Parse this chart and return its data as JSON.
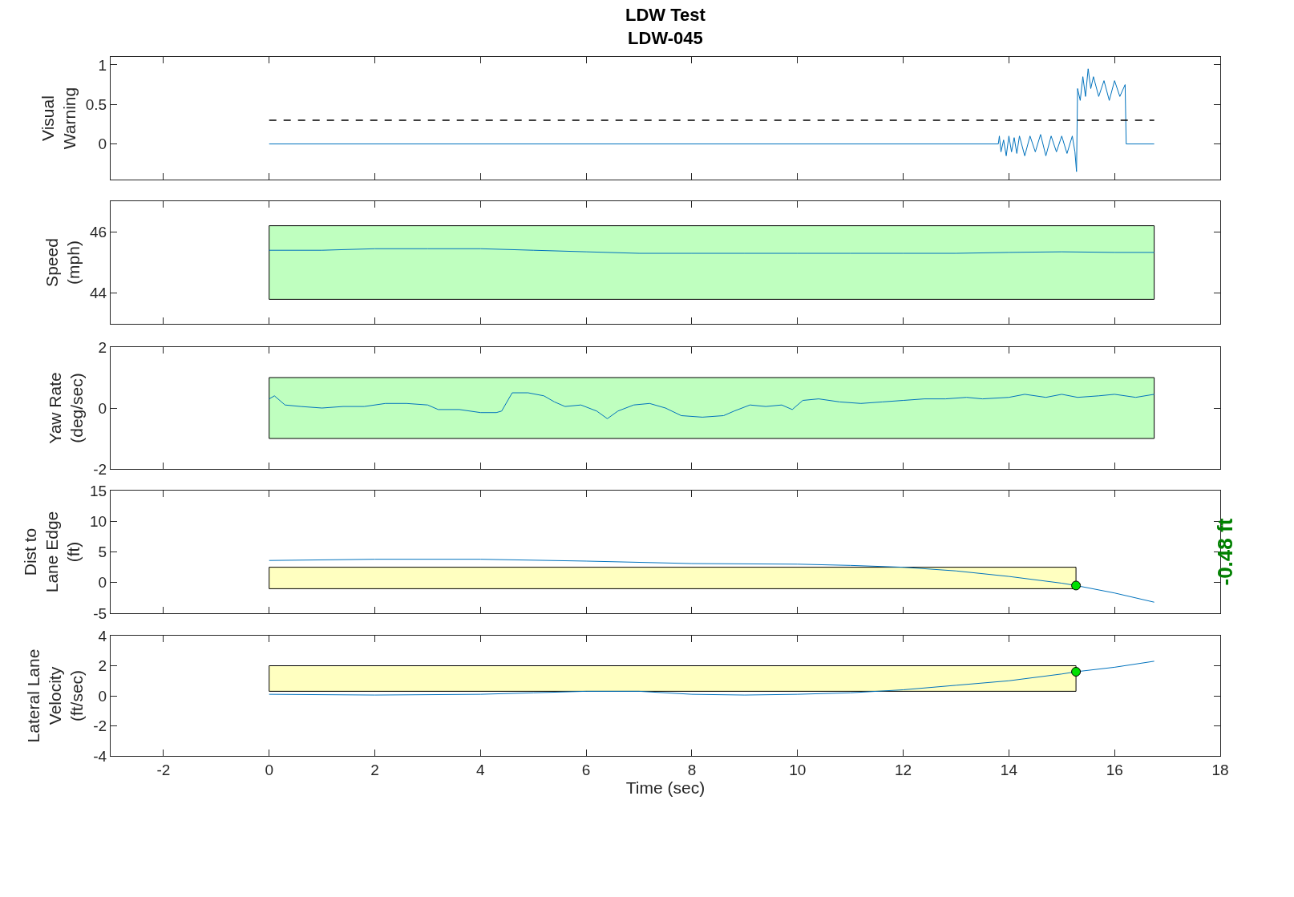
{
  "chart_data": [
    {
      "type": "line",
      "title": "LDW Test",
      "subtitle": "LDW-045",
      "ylabel": "Visual\nWarning",
      "xlim": [
        -3,
        18
      ],
      "xticks": [
        -2,
        0,
        2,
        4,
        6,
        8,
        10,
        12,
        14,
        16,
        18
      ],
      "ylim": [
        -0.45,
        1.1
      ],
      "yticks": [
        0,
        0.5,
        1
      ],
      "tick_labels": "y",
      "ref_lines": [
        {
          "axis": "y",
          "value": 0.3,
          "color": "#000000",
          "line_style": "dashed"
        }
      ],
      "series": [
        {
          "color": "#0072bd",
          "x": [
            0,
            13.8,
            13.82,
            13.85,
            13.9,
            13.95,
            14.0,
            14.05,
            14.1,
            14.15,
            14.2,
            14.3,
            14.4,
            14.5,
            14.6,
            14.7,
            14.8,
            14.9,
            15.0,
            15.1,
            15.2,
            15.25,
            15.28,
            15.3,
            15.35,
            15.4,
            15.45,
            15.5,
            15.55,
            15.6,
            15.7,
            15.8,
            15.9,
            16.0,
            16.1,
            16.2,
            16.22,
            16.75
          ],
          "values": [
            0,
            0,
            0.1,
            -0.1,
            0.05,
            -0.15,
            0.1,
            -0.1,
            0.08,
            -0.12,
            0.1,
            -0.15,
            0.1,
            -0.1,
            0.12,
            -0.15,
            0.1,
            -0.1,
            0.1,
            -0.12,
            0.1,
            -0.1,
            -0.35,
            0.7,
            0.55,
            0.85,
            0.6,
            0.95,
            0.7,
            0.85,
            0.6,
            0.8,
            0.55,
            0.8,
            0.6,
            0.75,
            0,
            0
          ]
        }
      ]
    },
    {
      "type": "line",
      "ylabel": "Speed\n(mph)",
      "xlim": [
        -3,
        18
      ],
      "xticks": [
        -2,
        0,
        2,
        4,
        6,
        8,
        10,
        12,
        14,
        16,
        18
      ],
      "ylim": [
        43,
        47
      ],
      "yticks": [
        44,
        46
      ],
      "tick_labels": "y",
      "bands": [
        {
          "axis": "y",
          "from": 43.8,
          "to": 46.2,
          "color": "#bfffbf"
        }
      ],
      "series": [
        {
          "color": "#0072bd",
          "x": [
            0,
            1,
            2,
            3,
            4,
            5,
            6,
            7,
            8,
            9,
            10,
            11,
            12,
            13,
            14,
            15,
            16,
            16.75
          ],
          "values": [
            45.4,
            45.4,
            45.45,
            45.45,
            45.45,
            45.4,
            45.35,
            45.3,
            45.3,
            45.3,
            45.3,
            45.3,
            45.3,
            45.3,
            45.33,
            45.35,
            45.33,
            45.33
          ]
        }
      ]
    },
    {
      "type": "line",
      "ylabel": "Yaw Rate\n(deg/sec)",
      "xlim": [
        -3,
        18
      ],
      "xticks": [
        -2,
        0,
        2,
        4,
        6,
        8,
        10,
        12,
        14,
        16,
        18
      ],
      "ylim": [
        -2,
        2
      ],
      "yticks": [
        -2,
        0,
        2
      ],
      "tick_labels": "y",
      "bands": [
        {
          "axis": "y",
          "from": -1,
          "to": 1,
          "color": "#bfffbf"
        }
      ],
      "series": [
        {
          "color": "#0072bd",
          "x": [
            0,
            0.1,
            0.3,
            0.6,
            1,
            1.4,
            1.8,
            2.2,
            2.6,
            3,
            3.2,
            3.6,
            4,
            4.3,
            4.4,
            4.6,
            4.9,
            5.2,
            5.4,
            5.6,
            5.9,
            6.2,
            6.4,
            6.6,
            6.9,
            7.2,
            7.5,
            7.8,
            8.2,
            8.6,
            8.8,
            9.1,
            9.4,
            9.7,
            9.9,
            10.1,
            10.4,
            10.8,
            11.2,
            11.6,
            12,
            12.4,
            12.8,
            13.2,
            13.5,
            14,
            14.3,
            14.7,
            15,
            15.3,
            15.7,
            16,
            16.4,
            16.75
          ],
          "values": [
            0.3,
            0.4,
            0.1,
            0.05,
            0,
            0.05,
            0.05,
            0.15,
            0.15,
            0.1,
            -0.05,
            -0.05,
            -0.15,
            -0.15,
            -0.1,
            0.5,
            0.5,
            0.4,
            0.2,
            0.05,
            0.1,
            -0.1,
            -0.35,
            -0.1,
            0.1,
            0.15,
            0,
            -0.25,
            -0.3,
            -0.25,
            -0.1,
            0.1,
            0.05,
            0.1,
            -0.05,
            0.25,
            0.3,
            0.2,
            0.15,
            0.2,
            0.25,
            0.3,
            0.3,
            0.35,
            0.3,
            0.35,
            0.45,
            0.35,
            0.45,
            0.35,
            0.4,
            0.45,
            0.35,
            0.45
          ]
        }
      ]
    },
    {
      "type": "line",
      "ylabel": "Dist to\nLane Edge\n(ft)",
      "xlim": [
        -3,
        18
      ],
      "xticks": [
        -2,
        0,
        2,
        4,
        6,
        8,
        10,
        12,
        14,
        16,
        18
      ],
      "ylim": [
        -5,
        15
      ],
      "yticks": [
        -5,
        0,
        5,
        10,
        15
      ],
      "tick_labels": "y",
      "annotations": [
        "-0.48 ft"
      ],
      "bands": [
        {
          "axis": "y",
          "from": -1,
          "to": 2.5,
          "color": "#ffffc0"
        }
      ],
      "series": [
        {
          "color": "#0072bd",
          "x": [
            0,
            2,
            4,
            6,
            8,
            10,
            11,
            12,
            13,
            14,
            15,
            15.27,
            16,
            16.75
          ],
          "values": [
            3.6,
            3.8,
            3.8,
            3.5,
            3.1,
            3.0,
            2.8,
            2.5,
            1.9,
            1.0,
            -0.1,
            -0.48,
            -1.7,
            -3.2
          ]
        },
        {
          "type": "scatter",
          "marker": "circle",
          "color": "#00e000",
          "x": [
            15.27
          ],
          "values": [
            -0.48
          ]
        }
      ]
    },
    {
      "type": "line",
      "ylabel": "Lateral Lane\nVelocity\n(ft/sec)",
      "xlabel": "Time (sec)",
      "xlim": [
        -3,
        18
      ],
      "xticks": [
        -2,
        0,
        2,
        4,
        6,
        8,
        10,
        12,
        14,
        16,
        18
      ],
      "ylim": [
        -4,
        4
      ],
      "yticks": [
        -4,
        -2,
        0,
        2,
        4
      ],
      "bands": [
        {
          "axis": "y",
          "from": 0.3,
          "to": 2,
          "color": "#ffffc0"
        }
      ],
      "series": [
        {
          "color": "#0072bd",
          "x": [
            0,
            2,
            4,
            5,
            6,
            7,
            8,
            9,
            10,
            11,
            12,
            13,
            14,
            15,
            15.27,
            16,
            16.75
          ],
          "values": [
            0.1,
            0.05,
            0.1,
            0.2,
            0.3,
            0.3,
            0.1,
            0.05,
            0.1,
            0.2,
            0.4,
            0.7,
            1.0,
            1.45,
            1.6,
            1.9,
            2.3
          ]
        },
        {
          "type": "scatter",
          "marker": "circle",
          "color": "#00e000",
          "x": [
            15.27
          ],
          "values": [
            1.6
          ]
        }
      ]
    }
  ]
}
